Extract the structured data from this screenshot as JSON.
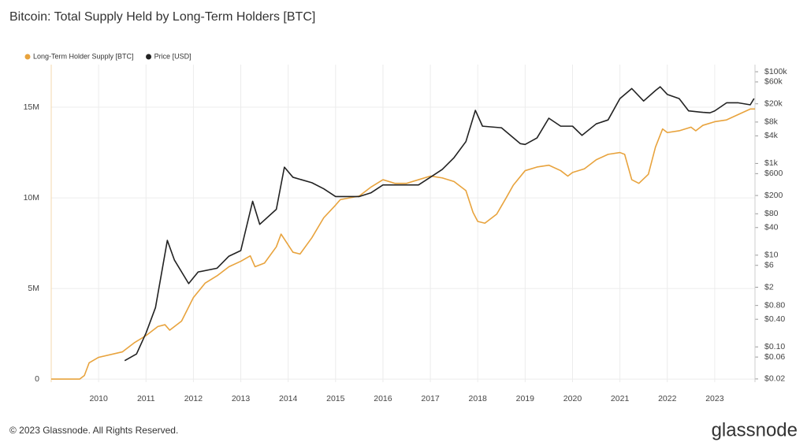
{
  "chart_data": {
    "type": "line",
    "title": "Bitcoin: Total Supply Held by Long-Term Holders [BTC]",
    "copyright": "© 2023 Glassnode. All Rights Reserved.",
    "brand": "glassnode",
    "grid": true,
    "legend": "top-left",
    "xlim": [
      2009.0,
      2023.85
    ],
    "xticks": [
      2010,
      2011,
      2012,
      2013,
      2014,
      2015,
      2016,
      2017,
      2018,
      2019,
      2020,
      2021,
      2022,
      2023
    ],
    "ylim": [
      -170000,
      17350000
    ],
    "yticks": [
      0,
      {
        "value": 5000000,
        "label": "5M"
      },
      {
        "value": 10000000,
        "label": "10M"
      },
      {
        "value": 15000000,
        "label": "15M"
      }
    ],
    "y2scale": "log",
    "y2lim": [
      0.017,
      143000
    ],
    "y2ticks": [
      {
        "value": 100000,
        "label": "$100k"
      },
      {
        "value": 60000,
        "label": "$60k"
      },
      {
        "value": 20000,
        "label": "$20k"
      },
      {
        "value": 8000,
        "label": "$8k"
      },
      {
        "value": 4000,
        "label": "$4k"
      },
      {
        "value": 1000,
        "label": "$1k"
      },
      {
        "value": 600,
        "label": "$600"
      },
      {
        "value": 200,
        "label": "$200"
      },
      {
        "value": 80,
        "label": "$80"
      },
      {
        "value": 40,
        "label": "$40"
      },
      {
        "value": 10,
        "label": "$10"
      },
      {
        "value": 6,
        "label": "$6"
      },
      {
        "value": 2,
        "label": "$2"
      },
      {
        "value": 0.8,
        "label": "$0.80"
      },
      {
        "value": 0.4,
        "label": "$0.40"
      },
      {
        "value": 0.1,
        "label": "$0.10"
      },
      {
        "value": 0.06,
        "label": "$0.06"
      },
      {
        "value": 0.02,
        "label": "$0.02"
      }
    ],
    "series": [
      {
        "name": "Long-Term Holder Supply [BTC]",
        "color": "#e8a33d",
        "axis": "y",
        "x": [
          2009.0,
          2009.6,
          2009.7,
          2009.8,
          2010.0,
          2010.5,
          2010.75,
          2011.0,
          2011.25,
          2011.4,
          2011.5,
          2011.75,
          2012.0,
          2012.25,
          2012.5,
          2012.75,
          2013.0,
          2013.2,
          2013.3,
          2013.5,
          2013.75,
          2013.85,
          2014.0,
          2014.1,
          2014.25,
          2014.5,
          2014.75,
          2015.0,
          2015.1,
          2015.5,
          2015.75,
          2016.0,
          2016.25,
          2016.5,
          2016.75,
          2017.0,
          2017.25,
          2017.5,
          2017.75,
          2017.9,
          2018.0,
          2018.15,
          2018.4,
          2018.6,
          2018.75,
          2019.0,
          2019.25,
          2019.5,
          2019.75,
          2019.9,
          2020.0,
          2020.25,
          2020.5,
          2020.75,
          2021.0,
          2021.1,
          2021.25,
          2021.4,
          2021.6,
          2021.75,
          2021.9,
          2022.0,
          2022.25,
          2022.5,
          2022.6,
          2022.75,
          2023.0,
          2023.25,
          2023.5,
          2023.75,
          2023.85
        ],
        "values": [
          0,
          0,
          200000,
          900000,
          1200000,
          1500000,
          2000000,
          2400000,
          2900000,
          3000000,
          2700000,
          3200000,
          4500000,
          5300000,
          5700000,
          6200000,
          6500000,
          6800000,
          6200000,
          6400000,
          7300000,
          8000000,
          7400000,
          7000000,
          6900000,
          7800000,
          8900000,
          9600000,
          9900000,
          10100000,
          10600000,
          11000000,
          10800000,
          10800000,
          11000000,
          11200000,
          11100000,
          10900000,
          10400000,
          9200000,
          8700000,
          8600000,
          9100000,
          10000000,
          10700000,
          11500000,
          11700000,
          11800000,
          11500000,
          11200000,
          11400000,
          11600000,
          12100000,
          12400000,
          12500000,
          12400000,
          11000000,
          10800000,
          11300000,
          12800000,
          13800000,
          13600000,
          13700000,
          13900000,
          13700000,
          14000000,
          14200000,
          14300000,
          14600000,
          14900000,
          14900000
        ]
      },
      {
        "name": "Price [USD]",
        "color": "#222222",
        "axis": "y2",
        "x": [
          2010.55,
          2010.8,
          2011.0,
          2011.2,
          2011.45,
          2011.6,
          2011.9,
          2012.1,
          2012.5,
          2012.75,
          2013.0,
          2013.25,
          2013.4,
          2013.75,
          2013.92,
          2014.1,
          2014.5,
          2014.75,
          2015.0,
          2015.5,
          2015.75,
          2016.0,
          2016.5,
          2016.75,
          2017.0,
          2017.25,
          2017.5,
          2017.75,
          2017.95,
          2018.1,
          2018.5,
          2018.9,
          2019.0,
          2019.25,
          2019.5,
          2019.75,
          2020.0,
          2020.2,
          2020.5,
          2020.75,
          2021.0,
          2021.25,
          2021.5,
          2021.75,
          2021.85,
          2022.0,
          2022.25,
          2022.45,
          2022.75,
          2022.9,
          2023.0,
          2023.25,
          2023.5,
          2023.75,
          2023.83
        ],
        "values": [
          0.05,
          0.07,
          0.2,
          0.72,
          21,
          7.8,
          2.4,
          4.3,
          5.2,
          9.5,
          12.6,
          150,
          47,
          100,
          830,
          500,
          380,
          280,
          190,
          190,
          230,
          340,
          340,
          340,
          500,
          740,
          1340,
          3000,
          14400,
          6500,
          6000,
          2700,
          2600,
          3600,
          9700,
          6500,
          6500,
          4100,
          7300,
          8900,
          26000,
          43000,
          23000,
          39000,
          47000,
          32000,
          26000,
          14000,
          13000,
          12700,
          14000,
          21000,
          21000,
          19000,
          26000
        ]
      }
    ]
  }
}
